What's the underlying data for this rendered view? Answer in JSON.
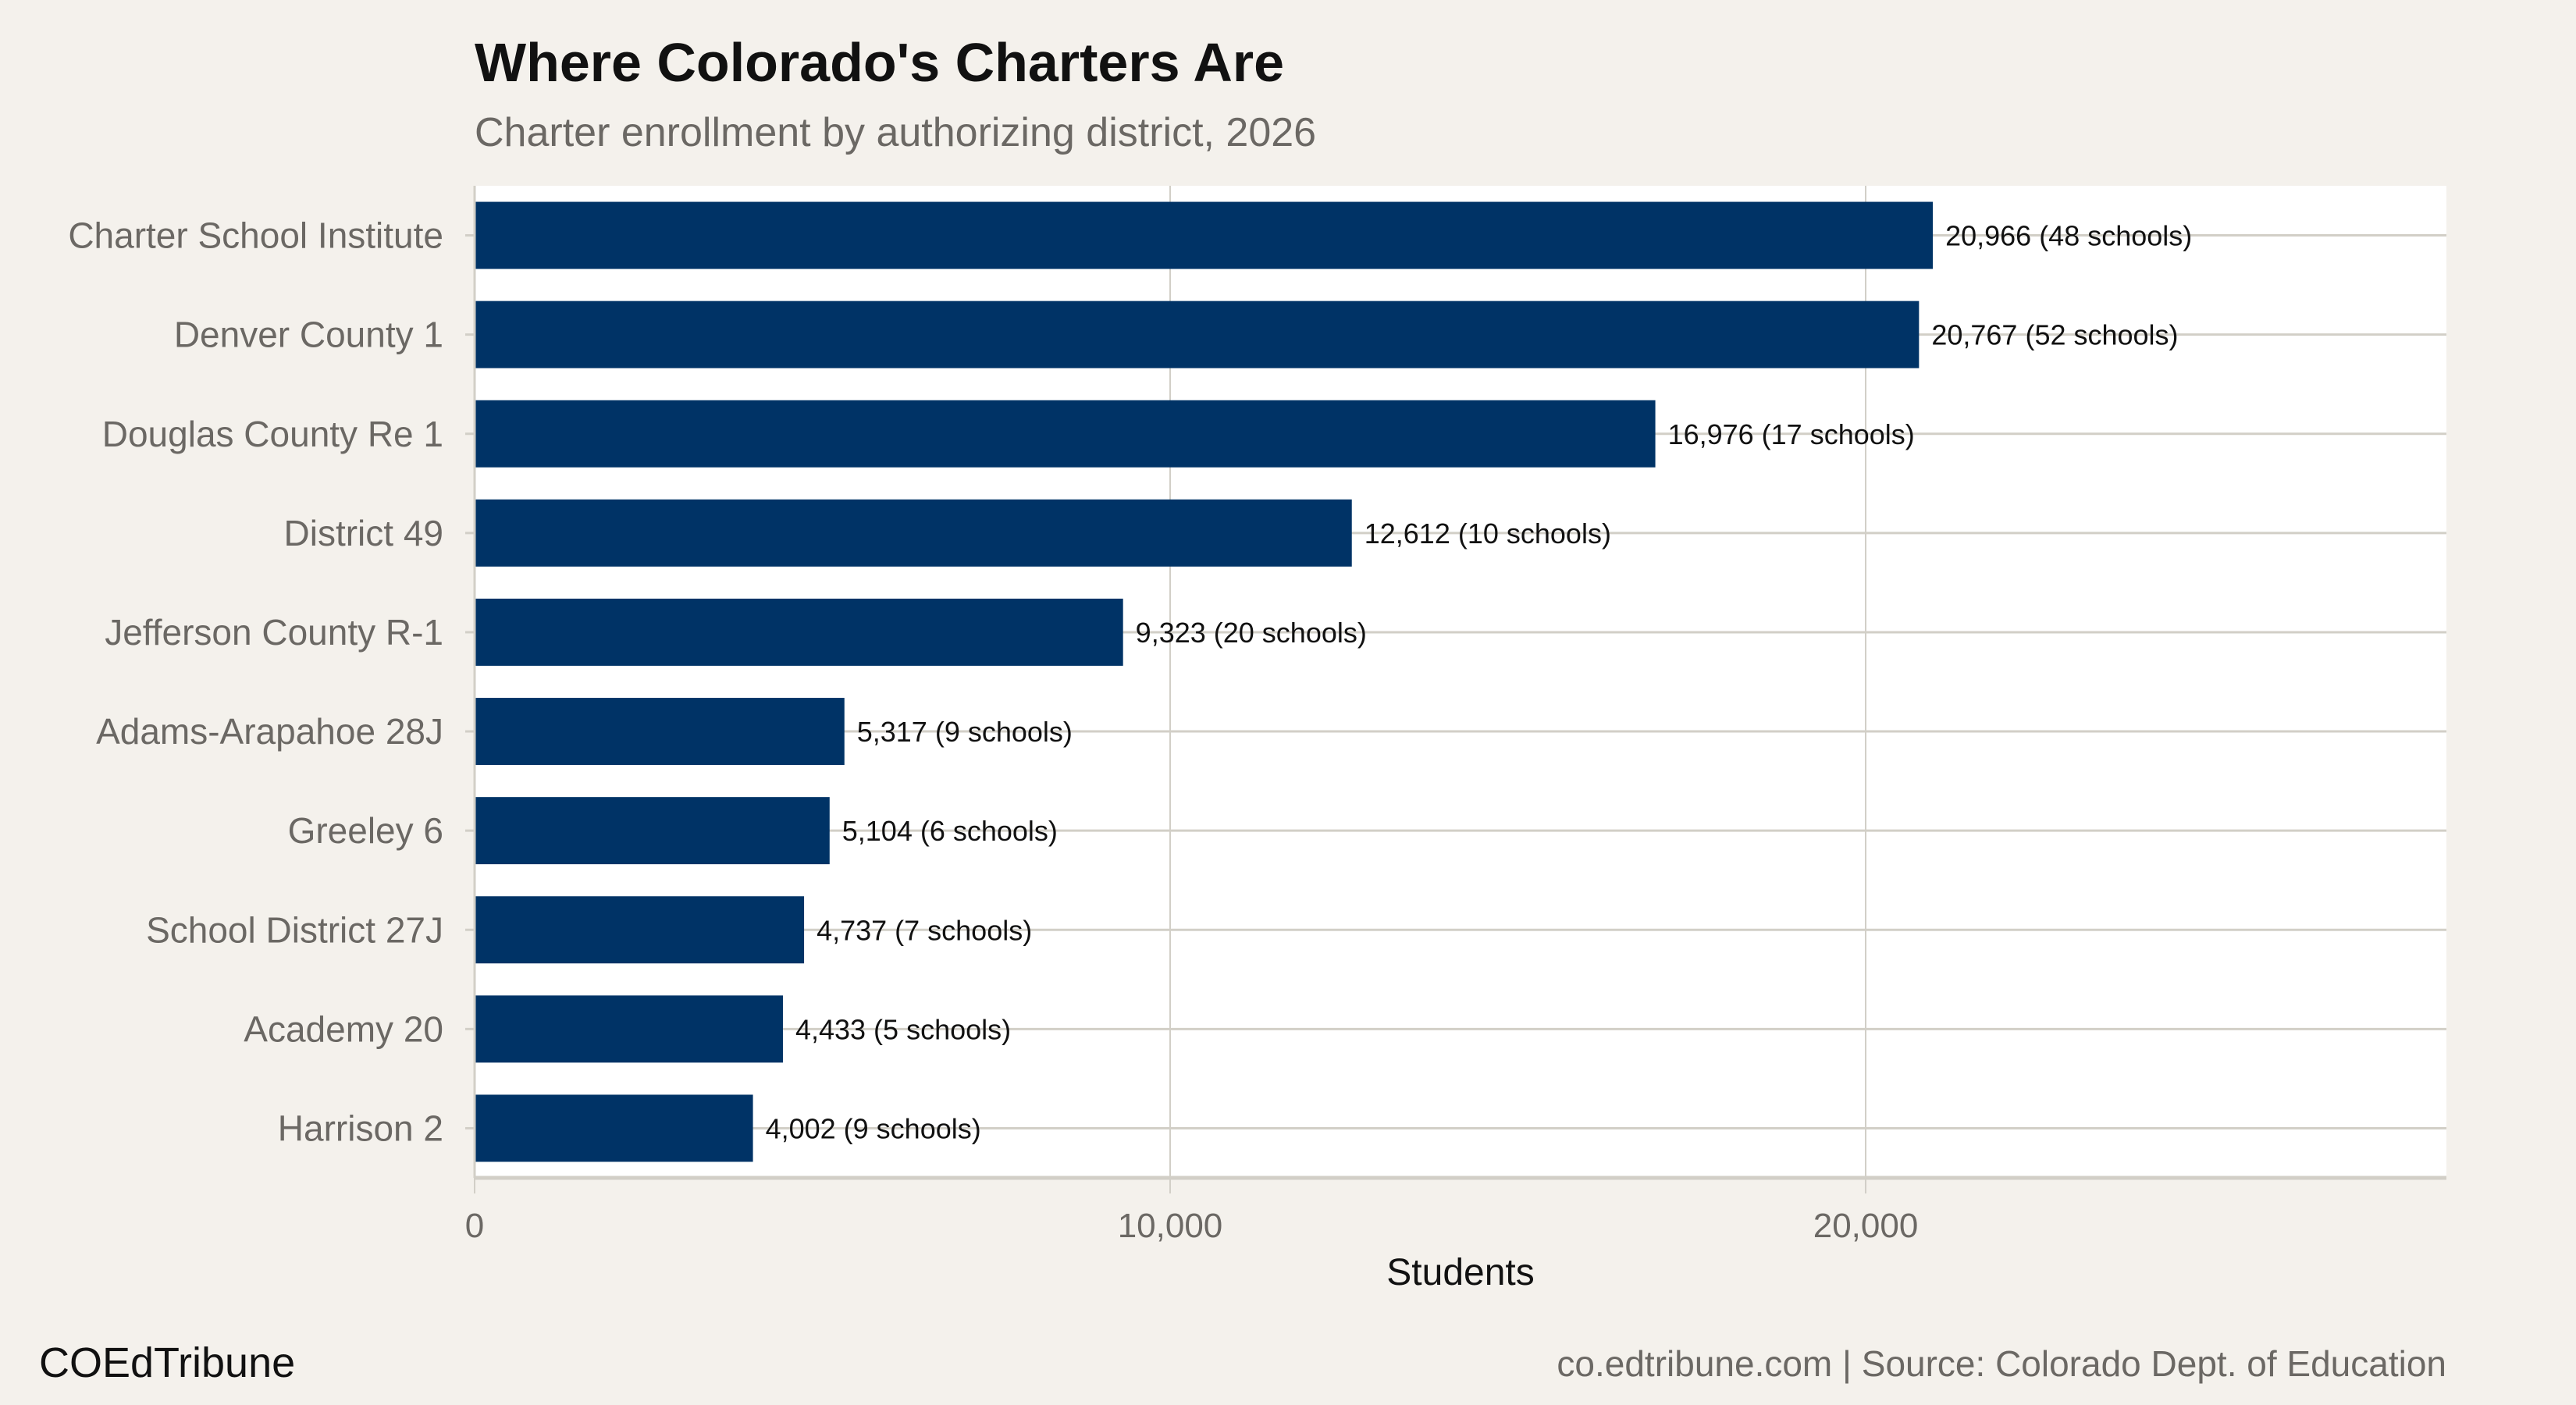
{
  "title": "Where Colorado's Charters Are",
  "subtitle": "Charter enrollment by authorizing district, 2026",
  "footer": {
    "brand": "COEdTribune",
    "source": "co.edtribune.com | Source: Colorado Dept. of Education"
  },
  "colors": {
    "bar": "#003366",
    "background": "#f4f1ec",
    "panel": "#ffffff",
    "grid": "#d2cfc7"
  },
  "chart_data": {
    "type": "bar",
    "orientation": "horizontal",
    "categories": [
      "Charter School Institute",
      "Denver County 1",
      "Douglas County Re 1",
      "District 49",
      "Jefferson County R-1",
      "Adams-Arapahoe 28J",
      "Greeley 6",
      "School District 27J",
      "Academy 20",
      "Harrison 2"
    ],
    "values": [
      20966,
      20767,
      16976,
      12612,
      9323,
      5317,
      5104,
      4737,
      4433,
      4002
    ],
    "data_labels": [
      "20,966 (48 schools)",
      "20,767 (52 schools)",
      "16,976 (17 schools)",
      "12,612 (10 schools)",
      "9,323 (20 schools)",
      "5,317 (9 schools)",
      "5,104 (6 schools)",
      "4,737 (7 schools)",
      "4,433 (5 schools)",
      "4,002 (9 schools)"
    ],
    "xlabel": "Students",
    "ylabel": "",
    "xlim": [
      0,
      28350
    ],
    "xticks": [
      0,
      10000,
      20000
    ],
    "xtick_labels": [
      "0",
      "10,000",
      "20,000"
    ],
    "grid": true,
    "legend": "none"
  }
}
